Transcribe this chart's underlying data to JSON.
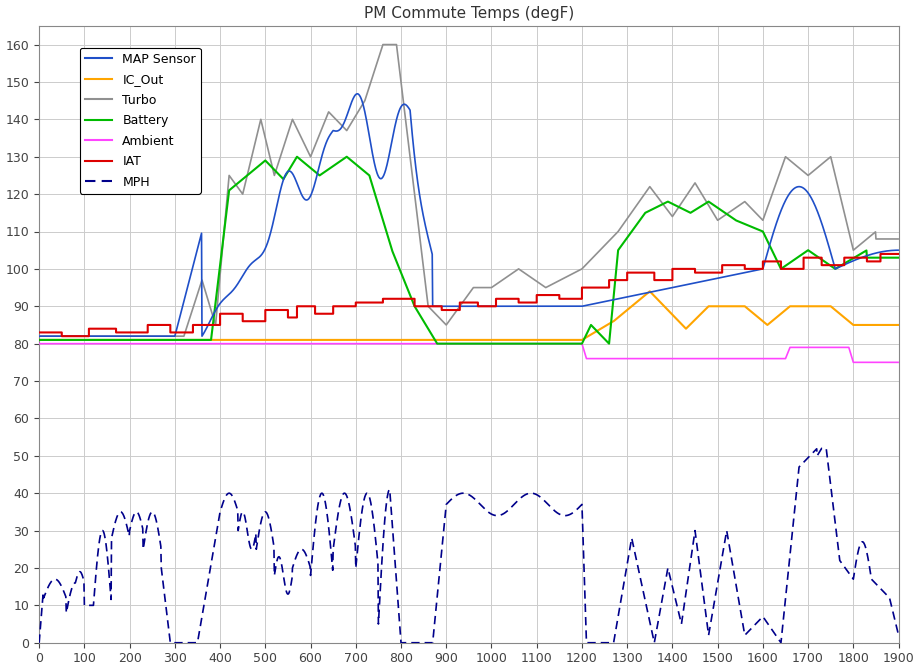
{
  "title": "PM Commute Temps (degF)",
  "xlim": [
    0,
    1900
  ],
  "ylim": [
    0,
    165
  ],
  "yticks": [
    0,
    10,
    20,
    30,
    40,
    50,
    60,
    70,
    80,
    90,
    100,
    110,
    120,
    130,
    140,
    150,
    160
  ],
  "xticks": [
    0,
    100,
    200,
    300,
    400,
    500,
    600,
    700,
    800,
    900,
    1000,
    1100,
    1200,
    1300,
    1400,
    1500,
    1600,
    1700,
    1800,
    1900
  ],
  "colors": {
    "MAP": "#1f4fc8",
    "IC_Out": "#ffa500",
    "Turbo": "#909090",
    "Battery": "#00bb00",
    "Ambient": "#ff44ff",
    "IAT": "#dd0000",
    "MPH": "#00008b"
  },
  "background": "#ffffff",
  "grid_color": "#cccccc",
  "figsize": [
    9.2,
    6.71
  ],
  "dpi": 100
}
